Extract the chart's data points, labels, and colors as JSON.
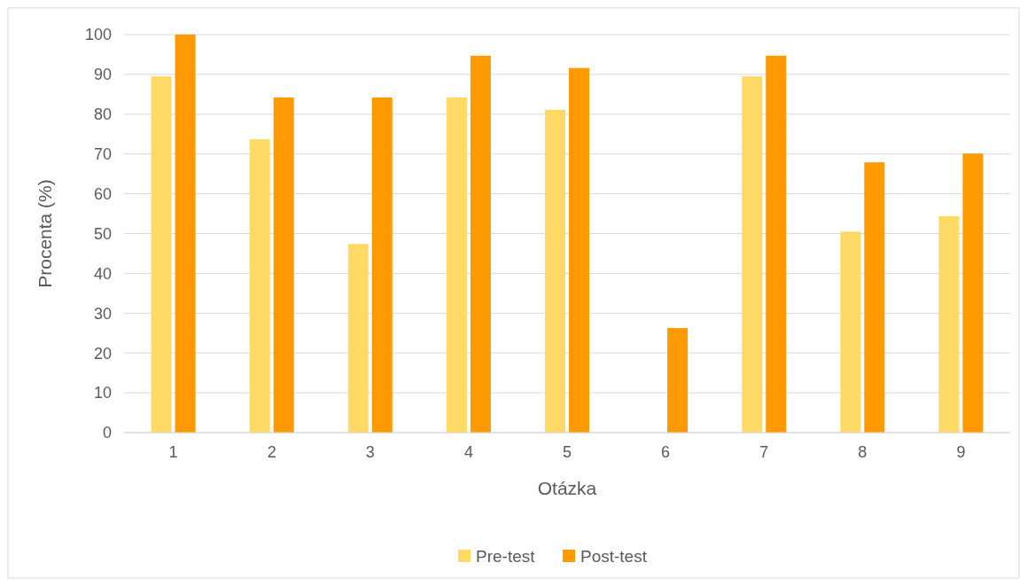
{
  "chart_data": {
    "type": "bar",
    "xlabel": "Otázka",
    "ylabel": "Procenta (%)",
    "categories": [
      "1",
      "2",
      "3",
      "4",
      "5",
      "6",
      "7",
      "8",
      "9"
    ],
    "series": [
      {
        "name": "Pre-test",
        "color": "#ffd966",
        "values": [
          89.5,
          73.7,
          47.4,
          84.2,
          81.1,
          0,
          89.5,
          50.5,
          54.4
        ]
      },
      {
        "name": "Post-test",
        "color": "#ff9900",
        "values": [
          100,
          84.2,
          84.2,
          94.7,
          91.6,
          26.3,
          94.7,
          67.9,
          70.1
        ]
      }
    ],
    "ylim": [
      0,
      100
    ],
    "yticks": [
      0,
      10,
      20,
      30,
      40,
      50,
      60,
      70,
      80,
      90,
      100
    ],
    "grid": "y",
    "legend": "bottom"
  }
}
